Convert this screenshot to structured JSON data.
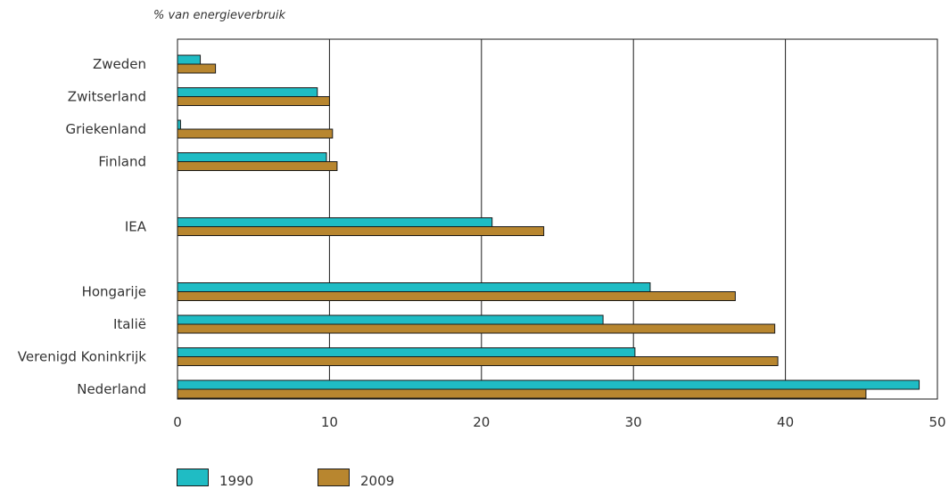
{
  "chart_data": {
    "type": "bar",
    "orientation": "horizontal",
    "unit_label": "% van energieverbruik",
    "categories": [
      "Zweden",
      "Zwitserland",
      "Griekenland",
      "Finland",
      "",
      "IEA",
      "",
      "Hongarije",
      "Italië",
      "Verenigd Koninkrijk",
      "Nederland"
    ],
    "series": [
      {
        "name": "1990",
        "color": "#1fbcc4",
        "values": [
          1.5,
          9.2,
          0.2,
          9.8,
          null,
          20.7,
          null,
          31.1,
          28.0,
          30.1,
          48.8
        ]
      },
      {
        "name": "2009",
        "color": "#b8862f",
        "values": [
          2.5,
          10.0,
          10.2,
          10.5,
          null,
          24.1,
          null,
          36.7,
          39.3,
          39.5,
          45.3
        ]
      }
    ],
    "xlim": [
      0,
      50
    ],
    "xticks": [
      "0",
      "10",
      "20",
      "30",
      "40",
      "50"
    ],
    "grid": true,
    "legend_position": "bottom-left"
  }
}
